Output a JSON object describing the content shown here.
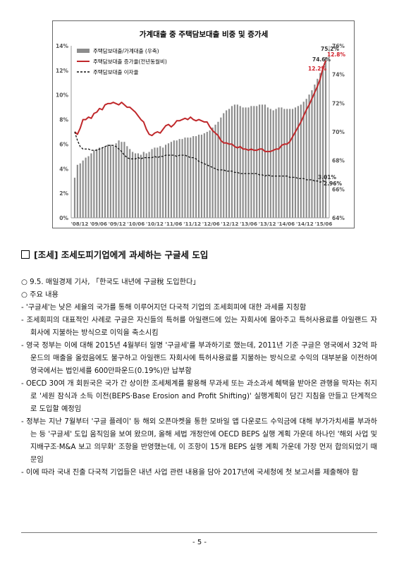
{
  "chart_data": {
    "type": "bar+line",
    "title": "가계대출 중 주택담보대출 비중 및 증가세",
    "x_tick_labels": [
      "'08/12",
      "'09/06",
      "'09/12",
      "'10/06",
      "'10/12",
      "'11/06",
      "'11/12",
      "'12/06",
      "'12/12",
      "'13/06",
      "'13/12",
      "'14/06",
      "'14/12",
      "'15/06"
    ],
    "left_axis": {
      "ticks": [
        "0%",
        "2%",
        "4%",
        "6%",
        "8%",
        "10%",
        "12%",
        "14%"
      ],
      "min": 0,
      "max": 14
    },
    "right_axis": {
      "ticks": [
        "64%",
        "66%",
        "68%",
        "70%",
        "72%",
        "74%",
        "76%"
      ],
      "min": 64,
      "max": 76
    },
    "legend": {
      "bars": "주택담보대출/가계대출 (우축)",
      "red": "주택담보대출 증가율(전년동월비)",
      "black": "주택담보대출 이자율"
    },
    "annotations": {
      "share_prev": "74.6%",
      "share_last": "75.2%",
      "growth_prev": "12.2%",
      "growth_last": "12.8%",
      "rate_prev": "3.01%",
      "rate_last": "2.96%"
    },
    "series": [
      {
        "name": "주택담보대출/가계대출 (우축)",
        "axis": "right",
        "values": [
          66.8,
          67.7,
          67.8,
          68.0,
          68.2,
          68.3,
          68.5,
          68.7,
          68.8,
          68.9,
          68.9,
          69.0,
          69.1,
          69.1,
          69.0,
          69.2,
          69.4,
          69.3,
          69.3,
          69.0,
          68.8,
          68.6,
          68.5,
          68.5,
          68.4,
          68.6,
          68.5,
          68.6,
          68.8,
          68.9,
          68.9,
          69.0,
          68.9,
          69.1,
          69.2,
          69.3,
          69.4,
          69.4,
          69.5,
          69.5,
          69.6,
          69.6,
          69.6,
          69.7,
          69.7,
          69.8,
          69.8,
          69.9,
          70.0,
          70.1,
          70.3,
          70.5,
          70.7,
          71.0,
          71.3,
          71.5,
          71.6,
          71.8,
          71.9,
          71.9,
          71.8,
          71.7,
          71.7,
          71.7,
          71.8,
          71.8,
          71.8,
          71.9,
          71.9,
          71.9,
          71.7,
          71.6,
          71.5,
          71.6,
          71.7,
          71.7,
          71.6,
          71.6,
          71.6,
          71.6,
          71.7,
          71.8,
          71.9,
          72.1,
          72.3,
          72.6,
          72.9,
          73.3,
          73.7,
          74.1,
          74.6,
          75.2
        ]
      },
      {
        "name": "주택담보대출 증가율(전년동월비)",
        "axis": "left",
        "values": [
          7.0,
          6.8,
          7.3,
          8.0,
          8.0,
          8.2,
          8.1,
          8.5,
          8.6,
          8.9,
          8.8,
          9.2,
          9.3,
          9.3,
          9.4,
          9.3,
          9.2,
          9.4,
          9.2,
          9.0,
          9.0,
          8.8,
          8.6,
          8.3,
          8.0,
          7.8,
          7.2,
          6.8,
          6.7,
          6.9,
          7.0,
          6.9,
          7.2,
          7.5,
          7.6,
          7.4,
          7.6,
          7.9,
          7.9,
          8.0,
          8.1,
          8.0,
          8.2,
          8.0,
          7.9,
          8.0,
          7.9,
          7.8,
          7.8,
          7.4,
          7.1,
          6.9,
          6.7,
          6.3,
          6.1,
          6.1,
          6.0,
          6.0,
          5.8,
          5.7,
          5.8,
          5.6,
          5.6,
          5.5,
          5.6,
          5.5,
          5.5,
          5.6,
          5.6,
          5.4,
          5.4,
          5.4,
          5.5,
          5.6,
          5.6,
          5.9,
          6.0,
          6.0,
          6.2,
          6.6,
          7.0,
          7.4,
          7.8,
          8.3,
          8.8,
          9.2,
          9.7,
          10.2,
          10.7,
          11.3,
          12.2,
          12.8
        ]
      },
      {
        "name": "주택담보대출 이자율",
        "axis": "left",
        "values": [
          7.0,
          6.3,
          5.8,
          5.6,
          5.6,
          5.6,
          5.5,
          5.5,
          5.5,
          5.6,
          5.7,
          5.8,
          5.9,
          5.9,
          5.9,
          5.8,
          5.6,
          5.4,
          5.1,
          4.9,
          4.8,
          4.8,
          4.8,
          4.9,
          4.8,
          4.9,
          4.9,
          4.9,
          4.9,
          5.0,
          4.9,
          5.0,
          5.0,
          5.1,
          5.1,
          5.1,
          5.1,
          5.0,
          5.1,
          5.1,
          5.1,
          5.0,
          4.9,
          4.9,
          4.8,
          4.6,
          4.5,
          4.4,
          4.3,
          4.2,
          4.1,
          4.0,
          3.9,
          3.9,
          3.9,
          3.8,
          3.8,
          3.8,
          3.7,
          3.7,
          3.6,
          3.6,
          3.6,
          3.6,
          3.6,
          3.6,
          3.6,
          3.5,
          3.5,
          3.4,
          3.5,
          3.4,
          3.4,
          3.4,
          3.4,
          3.4,
          3.4,
          3.4,
          3.3,
          3.3,
          3.3,
          3.2,
          3.2,
          3.2,
          3.1,
          3.1,
          3.1,
          3.0,
          3.0,
          2.9,
          3.01,
          2.96
        ]
      }
    ]
  },
  "section": {
    "title": "[조세] 조세도피기업에게 과세하는 구글세 도입"
  },
  "source_line": "○ 9.5. 매일경제 기사, 「한국도 내년에 구글稅 도입한다」",
  "main_label": "○ 주요 내용",
  "items": [
    "- '구글세'는 낮은 세율의 국가를 통해 이루어지던 다국적 기업의 조세회피에 대한 과세를 지칭함",
    "- 조세회피의 대표적인 사례로 구글은 자신들의 특허를 아일랜드에 있는 자회사에 몰아주고 특허사용료를 아일랜드 자회사에 지불하는 방식으로 이익을 축소시킴",
    "- 영국 정부는 이에 대해 2015년 4월부터 일명 '구글세'를 부과하기로 했는데, 2011년 기준 구글은 영국에서 32억 파운드의 매출을 올렸음에도 불구하고 아일랜드 자회사에 특허사용료를 지불하는 방식으로 수익의 대부분을 이전하여 영국에서는 법인세를 600만파운드(0.19%)만 납부함",
    "- OECD 30여 개 회원국은 국가 간 상이한 조세체계를 활용해 무과세 또는 과소과세 혜택을 받아온 관행을 막자는 취지로 '세원 잠식과 소득 이전(BEPS·Base Erosion and Profit Shifting)' 실행계획이 담긴 지침을 만들고 단계적으로 도입할 예정임",
    "- 정부는 지난 7월부터 '구글 플레이' 등 해외 오픈마켓을 통한 모바일 앱 다운로드 수익금에 대해 부가가치세를 부과하는 등 '구글세' 도입 움직임을 보여 왔으며, 올해 세법 개정안에 OECD BEPS 실행 계획 가운데 하나인 '해외 사업 및 지배구조·M&A 보고 의무화' 조항을 반영했는데, 이 조항이 15개 BEPS 실행 계획 가운데 가장 먼저 합의되었기 때문임",
    "- 이에 따라 국내 진출 다국적 기업들은 내년 사업 관련 내용을 담아 2017년에 국세청에 첫 보고서를 제출해야 함"
  ],
  "footer": {
    "page": "- 5 -"
  },
  "colors": {
    "bar": "#8c8c8c",
    "growth_line": "#c0282b",
    "rate_line": "#111111",
    "annotation_red": "#d0202a"
  }
}
